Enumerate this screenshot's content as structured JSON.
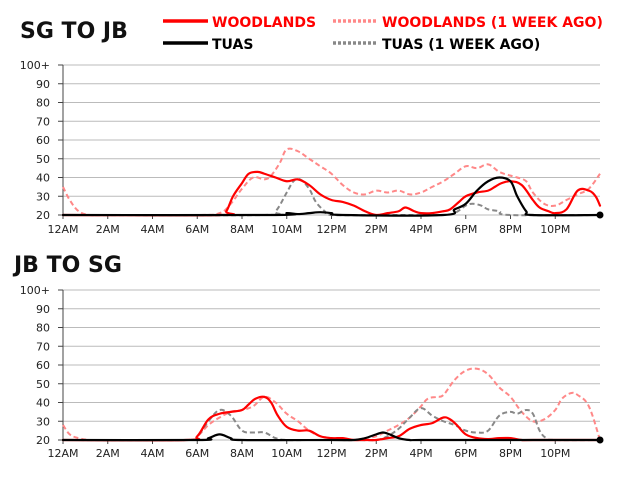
{
  "legend": {
    "woodlands": "WOODLANDS",
    "woodlands_prev": "WOODLANDS (1 WEEK AGO)",
    "tuas": "TUAS",
    "tuas_prev": "TUAS (1 WEEK AGO)"
  },
  "colors": {
    "woodlands": "#ff0000",
    "woodlands_prev": "#ff8888",
    "tuas": "#000000",
    "tuas_prev": "#888888",
    "grid": "#bbbbbb"
  },
  "chart_data": [
    {
      "type": "line",
      "title": "SG TO JB",
      "xlabel": "",
      "ylabel": "",
      "xlim": [
        0,
        24
      ],
      "ylim": [
        20,
        100
      ],
      "yticks": [
        20,
        30,
        40,
        50,
        60,
        70,
        80,
        90,
        100
      ],
      "ytick_labels": [
        "20",
        "30",
        "40",
        "50",
        "60",
        "70",
        "80",
        "90",
        "100+"
      ],
      "xticks": [
        0,
        2,
        4,
        6,
        8,
        10,
        12,
        14,
        16,
        18,
        20,
        22
      ],
      "xtick_labels": [
        "12AM",
        "2AM",
        "4AM",
        "6AM",
        "8AM",
        "10AM",
        "12PM",
        "2PM",
        "4PM",
        "6PM",
        "8PM",
        "10PM"
      ],
      "series": [
        {
          "name": "WOODLANDS (1 WEEK AGO)",
          "key": "woodlands_prev",
          "dashed": true,
          "x": [
            0,
            0.3,
            0.7,
            1.2,
            2,
            6,
            7,
            7.5,
            8,
            8.5,
            9,
            9.3,
            9.7,
            10,
            10.5,
            11,
            11.5,
            12,
            12.5,
            13,
            13.5,
            14,
            14.5,
            15,
            15.5,
            16,
            16.5,
            17,
            17.5,
            18,
            18.5,
            19,
            19.5,
            20,
            20.3,
            20.7,
            21,
            21.5,
            22,
            22.5,
            23,
            23.5,
            24
          ],
          "y": [
            35,
            28,
            22,
            20,
            20,
            20,
            21,
            26,
            34,
            40,
            39,
            41,
            48,
            55,
            54,
            50,
            46,
            42,
            36,
            32,
            31,
            33,
            32,
            33,
            31,
            32,
            35,
            38,
            42,
            46,
            45,
            47,
            43,
            41,
            40,
            38,
            32,
            26,
            25,
            28,
            31,
            34,
            42
          ]
        },
        {
          "name": "TUAS (1 WEEK AGO)",
          "key": "tuas_prev",
          "dashed": true,
          "x": [
            0,
            9,
            9.5,
            10,
            10.3,
            10.6,
            11,
            11.3,
            11.7,
            12,
            14,
            15,
            17,
            17.5,
            18,
            18.3,
            18.7,
            19,
            19.5,
            20,
            24
          ],
          "y": [
            20,
            20,
            22,
            32,
            38,
            39,
            34,
            27,
            22,
            20,
            20,
            20,
            20,
            21,
            25,
            26,
            25,
            23,
            22,
            20,
            20
          ]
        },
        {
          "name": "WOODLANDS",
          "key": "woodlands",
          "dashed": false,
          "x": [
            0,
            7,
            7.3,
            7.6,
            8,
            8.3,
            8.7,
            9,
            9.5,
            10,
            10.5,
            11,
            11.5,
            12,
            12.5,
            13,
            13.5,
            14,
            14.5,
            15,
            15.3,
            15.7,
            16,
            16.5,
            17,
            17.3,
            17.7,
            18,
            18.5,
            19,
            19.3,
            19.6,
            20,
            20.5,
            21,
            21.3,
            21.7,
            22,
            22.5,
            23,
            23.5,
            23.8,
            24
          ],
          "y": [
            20,
            20,
            22,
            30,
            37,
            42,
            43,
            42,
            40,
            38,
            39,
            36,
            31,
            28,
            27,
            25,
            22,
            20,
            21,
            22,
            24,
            22,
            21,
            21,
            22,
            23,
            27,
            30,
            32,
            33,
            35,
            37,
            38,
            36,
            28,
            24,
            22,
            21,
            23,
            33,
            33,
            30,
            25
          ]
        },
        {
          "name": "TUAS",
          "key": "tuas",
          "dashed": false,
          "x": [
            0,
            9.5,
            10,
            10.5,
            11,
            11.5,
            12,
            12.5,
            17,
            17.5,
            18,
            18.5,
            19,
            19.5,
            20,
            20.3,
            20.7,
            21,
            24
          ],
          "y": [
            20,
            20,
            21,
            20.5,
            21,
            21.5,
            21,
            20,
            20,
            23,
            26,
            33,
            38,
            40,
            38,
            30,
            22,
            20,
            20
          ]
        }
      ]
    },
    {
      "type": "line",
      "title": "JB TO SG",
      "xlabel": "",
      "ylabel": "",
      "xlim": [
        0,
        24
      ],
      "ylim": [
        20,
        100
      ],
      "yticks": [
        20,
        30,
        40,
        50,
        60,
        70,
        80,
        90,
        100
      ],
      "ytick_labels": [
        "20",
        "30",
        "40",
        "50",
        "60",
        "70",
        "80",
        "90",
        "100+"
      ],
      "xticks": [
        0,
        2,
        4,
        6,
        8,
        10,
        12,
        14,
        16,
        18,
        20,
        22
      ],
      "xtick_labels": [
        "12AM",
        "2AM",
        "4AM",
        "6AM",
        "8AM",
        "10AM",
        "12PM",
        "2PM",
        "4PM",
        "6PM",
        "8PM",
        "10PM"
      ],
      "series": [
        {
          "name": "WOODLANDS (1 WEEK AGO)",
          "key": "woodlands_prev",
          "dashed": true,
          "x": [
            0,
            0.3,
            0.7,
            1.2,
            2,
            5.5,
            6,
            6.5,
            7,
            7.5,
            8,
            8.5,
            9,
            9.5,
            10,
            10.5,
            11,
            11.5,
            12,
            12.5,
            13,
            13.5,
            14,
            14.5,
            15,
            15.5,
            16,
            16.3,
            16.7,
            17,
            17.5,
            18,
            18.5,
            19,
            19.5,
            20,
            20.5,
            21,
            21.5,
            22,
            22.3,
            22.7,
            23,
            23.5,
            24
          ],
          "y": [
            28,
            23,
            21,
            20,
            20,
            20,
            22,
            28,
            32,
            35,
            36,
            38,
            43,
            40,
            34,
            30,
            25,
            22,
            21,
            20,
            20,
            21,
            22,
            25,
            28,
            32,
            38,
            42,
            43,
            44,
            52,
            57,
            58,
            55,
            48,
            43,
            35,
            30,
            31,
            36,
            42,
            45,
            44,
            38,
            20
          ]
        },
        {
          "name": "TUAS (1 WEEK AGO)",
          "key": "tuas_prev",
          "dashed": true,
          "x": [
            0,
            5.5,
            6,
            6.5,
            7,
            7.5,
            8,
            8.5,
            9,
            9.5,
            10,
            11,
            12,
            13,
            14,
            14.5,
            15,
            15.5,
            16,
            16.5,
            17,
            17.5,
            18,
            18.5,
            19,
            19.5,
            20,
            20.3,
            20.7,
            21,
            21.3,
            21.6,
            22,
            24
          ],
          "y": [
            20,
            20,
            22,
            30,
            36,
            33,
            25,
            24,
            24,
            21,
            20,
            20,
            20,
            20,
            20,
            22,
            26,
            32,
            37,
            33,
            30,
            28,
            25,
            24,
            25,
            33,
            35,
            34,
            36,
            34,
            25,
            21,
            20,
            20
          ]
        },
        {
          "name": "WOODLANDS",
          "key": "woodlands",
          "dashed": false,
          "x": [
            0,
            5.5,
            6,
            6.5,
            7,
            7.5,
            8,
            8.3,
            8.6,
            9,
            9.3,
            9.6,
            10,
            10.5,
            11,
            11.5,
            12,
            12.5,
            13,
            13.5,
            14,
            14.5,
            15,
            15.5,
            16,
            16.5,
            17,
            17.3,
            17.6,
            18,
            18.5,
            19,
            19.5,
            20,
            20.5,
            21,
            24
          ],
          "y": [
            20,
            20,
            22,
            31,
            34,
            35,
            36,
            39,
            42,
            43,
            40,
            33,
            27,
            25,
            25,
            22,
            21,
            21,
            20,
            20,
            20,
            21,
            22,
            26,
            28,
            29,
            32,
            31,
            28,
            23,
            21,
            20.5,
            21,
            21,
            20,
            20,
            20
          ]
        },
        {
          "name": "TUAS",
          "key": "tuas",
          "dashed": false,
          "x": [
            0,
            6,
            6.5,
            7,
            7.5,
            8,
            12,
            13,
            13.5,
            14,
            14.3,
            14.6,
            15,
            15.5,
            16,
            20,
            24
          ],
          "y": [
            20,
            20,
            21,
            23,
            21,
            20,
            20,
            20,
            21,
            23,
            24,
            23,
            21,
            20,
            20,
            20,
            20
          ]
        }
      ]
    }
  ]
}
